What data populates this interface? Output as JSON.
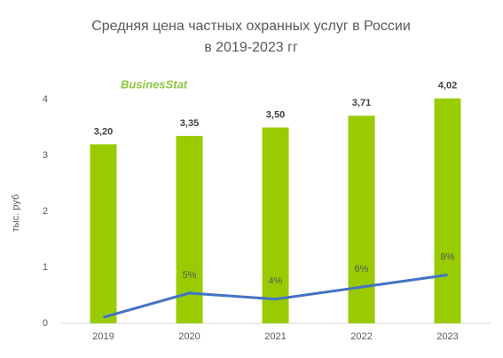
{
  "chart_data": {
    "type": "bar",
    "title": [
      "Средняя цена частных охранных услуг в России",
      "в 2019-2023 гг"
    ],
    "logo": "BusinesStat",
    "y_label": "тыс. руб",
    "categories": [
      "2019",
      "2020",
      "2021",
      "2022",
      "2023"
    ],
    "series": [
      {
        "type": "bar",
        "color": "#99cc00",
        "values": [
          3.2,
          3.35,
          3.5,
          3.71,
          4.02
        ],
        "value_labels": [
          "3,20",
          "3,35",
          "3,50",
          "3,71",
          "4,02"
        ]
      },
      {
        "type": "line",
        "axis": "y2",
        "color": "#4472c4",
        "values": [
          1,
          5,
          4,
          6,
          8
        ],
        "value_labels": [
          null,
          "5%",
          "4%",
          "6%",
          "8%"
        ]
      }
    ],
    "ylim": [
      0,
      4
    ],
    "yticks": [
      0,
      1,
      2,
      3,
      4
    ],
    "y2lim": [
      0,
      37
    ],
    "grid": false
  }
}
